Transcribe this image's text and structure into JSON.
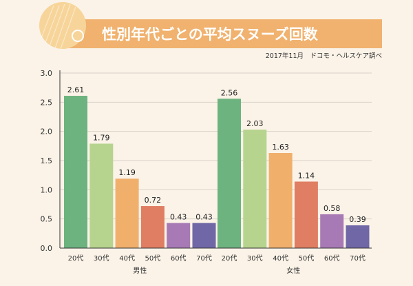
{
  "header": {
    "title": "性別年代ごとの平均スヌーズ回数",
    "source": "2017年11月　ドコモ・ヘルスケア調べ"
  },
  "colors": {
    "background": "#fbf3e8",
    "banner": "#f0b26e",
    "badge": "#f7d59a",
    "axis": "#333333",
    "grid": "#d9d2c8",
    "ages": [
      "#6db37f",
      "#b6d48e",
      "#f0b06c",
      "#e07e63",
      "#a87ab5",
      "#6f67a6"
    ]
  },
  "chart_data": {
    "type": "bar",
    "title": "性別年代ごとの平均スヌーズ回数",
    "subtitle": "2017年11月　ドコモ・ヘルスケア調べ",
    "ylim": [
      0,
      3.0
    ],
    "yticks": [
      "0.0",
      "0.5",
      "1.0",
      "1.5",
      "2.0",
      "2.5",
      "3.0"
    ],
    "grid": true,
    "groups": [
      {
        "name": "男性",
        "categories": [
          "20代",
          "30代",
          "40代",
          "50代",
          "60代",
          "70代"
        ],
        "values": [
          2.61,
          1.79,
          1.19,
          0.72,
          0.43,
          0.43
        ],
        "labels": [
          "2.61",
          "1.79",
          "1.19",
          "0.72",
          "0.43",
          "0.43"
        ]
      },
      {
        "name": "女性",
        "categories": [
          "20代",
          "30代",
          "40代",
          "50代",
          "60代",
          "70代"
        ],
        "values": [
          2.56,
          2.03,
          1.63,
          1.14,
          0.58,
          0.39
        ],
        "labels": [
          "2.56",
          "2.03",
          "1.63",
          "1.14",
          "0.58",
          "0.39"
        ]
      }
    ]
  }
}
